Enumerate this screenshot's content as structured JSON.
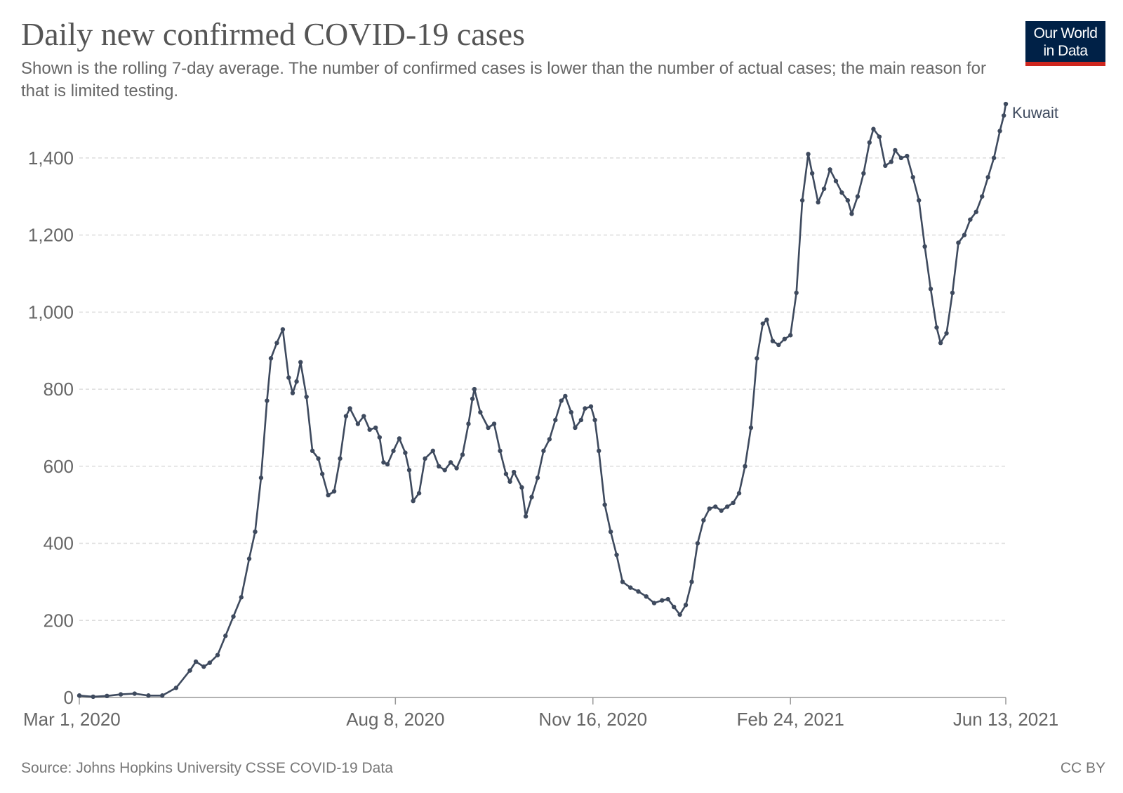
{
  "title": "Daily new confirmed COVID-19 cases",
  "subtitle": "Shown is the rolling 7-day average. The number of confirmed cases is lower than the number of actual cases; the main reason for that is limited testing.",
  "logo": {
    "line1": "Our World",
    "line2": "in Data",
    "bg_color": "#002147",
    "accent_color": "#ce261e"
  },
  "source": "Source: Johns Hopkins University CSSE COVID-19 Data",
  "license": "CC BY",
  "chart_data": {
    "type": "line",
    "title": "Daily new confirmed COVID-19 cases",
    "xlabel": "",
    "ylabel": "",
    "ylim": [
      0,
      1500
    ],
    "yticks": [
      0,
      200,
      400,
      600,
      800,
      1000,
      1200,
      1400
    ],
    "yticks_labels": [
      "0",
      "200",
      "400",
      "600",
      "800",
      "1,000",
      "1,200",
      "1,400"
    ],
    "xticks": [
      "2020-03-01",
      "2020-08-08",
      "2020-11-16",
      "2021-02-24",
      "2021-06-13"
    ],
    "xticks_labels": [
      "Mar 1, 2020",
      "Aug 8, 2020",
      "Nov 16, 2020",
      "Feb 24, 2021",
      "Jun 13, 2021"
    ],
    "xlim": [
      "2020-03-01",
      "2021-06-13"
    ],
    "grid": "horizontal dashed",
    "line_color": "#3e4a5e",
    "series": [
      {
        "name": "Kuwait",
        "points": [
          [
            "2020-03-01",
            5
          ],
          [
            "2020-03-08",
            2
          ],
          [
            "2020-03-15",
            4
          ],
          [
            "2020-03-22",
            8
          ],
          [
            "2020-03-29",
            10
          ],
          [
            "2020-04-05",
            5
          ],
          [
            "2020-04-12",
            5
          ],
          [
            "2020-04-19",
            25
          ],
          [
            "2020-04-26",
            70
          ],
          [
            "2020-04-29",
            93
          ],
          [
            "2020-05-03",
            80
          ],
          [
            "2020-05-06",
            90
          ],
          [
            "2020-05-10",
            110
          ],
          [
            "2020-05-14",
            160
          ],
          [
            "2020-05-18",
            210
          ],
          [
            "2020-05-22",
            260
          ],
          [
            "2020-05-26",
            360
          ],
          [
            "2020-05-29",
            430
          ],
          [
            "2020-06-01",
            570
          ],
          [
            "2020-06-04",
            770
          ],
          [
            "2020-06-06",
            880
          ],
          [
            "2020-06-09",
            920
          ],
          [
            "2020-06-12",
            955
          ],
          [
            "2020-06-15",
            830
          ],
          [
            "2020-06-17",
            790
          ],
          [
            "2020-06-19",
            820
          ],
          [
            "2020-06-21",
            870
          ],
          [
            "2020-06-24",
            780
          ],
          [
            "2020-06-27",
            640
          ],
          [
            "2020-06-30",
            620
          ],
          [
            "2020-07-02",
            580
          ],
          [
            "2020-07-05",
            525
          ],
          [
            "2020-07-08",
            535
          ],
          [
            "2020-07-11",
            620
          ],
          [
            "2020-07-14",
            730
          ],
          [
            "2020-07-16",
            750
          ],
          [
            "2020-07-20",
            710
          ],
          [
            "2020-07-23",
            730
          ],
          [
            "2020-07-26",
            695
          ],
          [
            "2020-07-29",
            700
          ],
          [
            "2020-07-31",
            675
          ],
          [
            "2020-08-02",
            610
          ],
          [
            "2020-08-04",
            605
          ],
          [
            "2020-08-07",
            640
          ],
          [
            "2020-08-10",
            672
          ],
          [
            "2020-08-13",
            635
          ],
          [
            "2020-08-15",
            590
          ],
          [
            "2020-08-17",
            510
          ],
          [
            "2020-08-20",
            530
          ],
          [
            "2020-08-23",
            620
          ],
          [
            "2020-08-27",
            640
          ],
          [
            "2020-08-30",
            600
          ],
          [
            "2020-09-02",
            590
          ],
          [
            "2020-09-05",
            610
          ],
          [
            "2020-09-08",
            595
          ],
          [
            "2020-09-11",
            630
          ],
          [
            "2020-09-14",
            710
          ],
          [
            "2020-09-16",
            775
          ],
          [
            "2020-09-17",
            800
          ],
          [
            "2020-09-20",
            740
          ],
          [
            "2020-09-24",
            700
          ],
          [
            "2020-09-27",
            710
          ],
          [
            "2020-09-30",
            640
          ],
          [
            "2020-10-03",
            580
          ],
          [
            "2020-10-05",
            560
          ],
          [
            "2020-10-07",
            585
          ],
          [
            "2020-10-11",
            545
          ],
          [
            "2020-10-13",
            470
          ],
          [
            "2020-10-16",
            520
          ],
          [
            "2020-10-19",
            570
          ],
          [
            "2020-10-22",
            640
          ],
          [
            "2020-10-25",
            670
          ],
          [
            "2020-10-28",
            720
          ],
          [
            "2020-10-31",
            770
          ],
          [
            "2020-11-02",
            782
          ],
          [
            "2020-11-05",
            740
          ],
          [
            "2020-11-07",
            700
          ],
          [
            "2020-11-10",
            720
          ],
          [
            "2020-11-12",
            750
          ],
          [
            "2020-11-15",
            755
          ],
          [
            "2020-11-17",
            720
          ],
          [
            "2020-11-19",
            640
          ],
          [
            "2020-11-22",
            500
          ],
          [
            "2020-11-25",
            430
          ],
          [
            "2020-11-28",
            370
          ],
          [
            "2020-12-01",
            300
          ],
          [
            "2020-12-05",
            285
          ],
          [
            "2020-12-09",
            275
          ],
          [
            "2020-12-13",
            262
          ],
          [
            "2020-12-17",
            245
          ],
          [
            "2020-12-21",
            252
          ],
          [
            "2020-12-24",
            255
          ],
          [
            "2020-12-27",
            235
          ],
          [
            "2020-12-30",
            215
          ],
          [
            "2021-01-02",
            240
          ],
          [
            "2021-01-05",
            300
          ],
          [
            "2021-01-08",
            400
          ],
          [
            "2021-01-11",
            460
          ],
          [
            "2021-01-14",
            490
          ],
          [
            "2021-01-17",
            495
          ],
          [
            "2021-01-20",
            485
          ],
          [
            "2021-01-23",
            495
          ],
          [
            "2021-01-26",
            505
          ],
          [
            "2021-01-29",
            530
          ],
          [
            "2021-02-01",
            600
          ],
          [
            "2021-02-04",
            700
          ],
          [
            "2021-02-07",
            880
          ],
          [
            "2021-02-10",
            970
          ],
          [
            "2021-02-12",
            980
          ],
          [
            "2021-02-15",
            925
          ],
          [
            "2021-02-18",
            915
          ],
          [
            "2021-02-21",
            930
          ],
          [
            "2021-02-24",
            940
          ],
          [
            "2021-02-27",
            1050
          ],
          [
            "2021-03-02",
            1290
          ],
          [
            "2021-03-05",
            1410
          ],
          [
            "2021-03-07",
            1360
          ],
          [
            "2021-03-10",
            1285
          ],
          [
            "2021-03-13",
            1320
          ],
          [
            "2021-03-16",
            1370
          ],
          [
            "2021-03-19",
            1340
          ],
          [
            "2021-03-22",
            1310
          ],
          [
            "2021-03-25",
            1290
          ],
          [
            "2021-03-27",
            1255
          ],
          [
            "2021-03-30",
            1300
          ],
          [
            "2021-04-02",
            1360
          ],
          [
            "2021-04-05",
            1440
          ],
          [
            "2021-04-07",
            1475
          ],
          [
            "2021-04-10",
            1455
          ],
          [
            "2021-04-13",
            1380
          ],
          [
            "2021-04-16",
            1390
          ],
          [
            "2021-04-18",
            1420
          ],
          [
            "2021-04-21",
            1400
          ],
          [
            "2021-04-24",
            1405
          ],
          [
            "2021-04-27",
            1350
          ],
          [
            "2021-04-30",
            1290
          ],
          [
            "2021-05-03",
            1170
          ],
          [
            "2021-05-06",
            1060
          ],
          [
            "2021-05-09",
            960
          ],
          [
            "2021-05-11",
            920
          ],
          [
            "2021-05-14",
            945
          ],
          [
            "2021-05-17",
            1050
          ],
          [
            "2021-05-20",
            1180
          ],
          [
            "2021-05-23",
            1200
          ],
          [
            "2021-05-26",
            1240
          ],
          [
            "2021-05-29",
            1260
          ],
          [
            "2021-06-01",
            1300
          ],
          [
            "2021-06-04",
            1350
          ],
          [
            "2021-06-07",
            1400
          ],
          [
            "2021-06-10",
            1470
          ],
          [
            "2021-06-12",
            1510
          ],
          [
            "2021-06-13",
            1540
          ]
        ]
      }
    ]
  }
}
